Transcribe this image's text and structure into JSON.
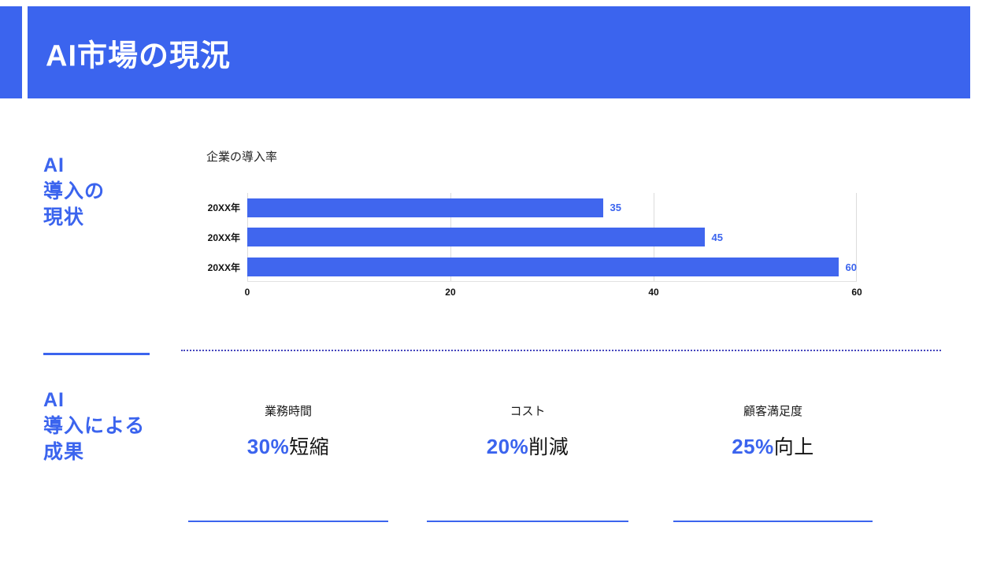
{
  "header": {
    "title": "AI市場の現況"
  },
  "sections": {
    "adoption": {
      "title_lines": [
        "AI",
        "導入の",
        "現状"
      ]
    },
    "results": {
      "title_lines": [
        "AI",
        "導入による",
        "成果"
      ]
    }
  },
  "chart_data": {
    "type": "bar",
    "orientation": "horizontal",
    "title": "企業の導入率",
    "categories": [
      "20XX年",
      "20XX年",
      "20XX年"
    ],
    "values": [
      35,
      45,
      60
    ],
    "xlim": [
      0,
      60
    ],
    "x_ticks": [
      "0",
      "20",
      "40",
      "60"
    ],
    "grid": true,
    "legend": false,
    "bar_color": "#4066ee",
    "value_label_color": "#3b64ee"
  },
  "results": [
    {
      "label": "業務時間",
      "number": "30%",
      "suffix": "短縮"
    },
    {
      "label": "コスト",
      "number": "20%",
      "suffix": "削減"
    },
    {
      "label": "顧客満足度",
      "number": "25%",
      "suffix": "向上"
    }
  ],
  "colors": {
    "accent": "#3b64ee",
    "header_background": "#3b64ee",
    "bar": "#4066ee",
    "dotted_divider": "#4545bd"
  }
}
